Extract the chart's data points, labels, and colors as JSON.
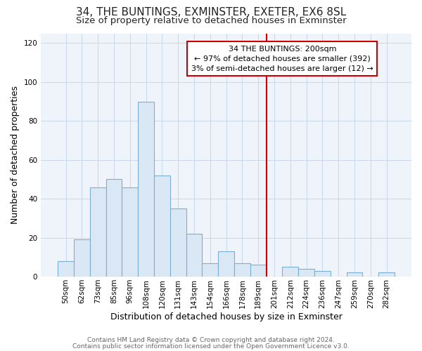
{
  "title": "34, THE BUNTINGS, EXMINSTER, EXETER, EX6 8SL",
  "subtitle": "Size of property relative to detached houses in Exminster",
  "xlabel": "Distribution of detached houses by size in Exminster",
  "ylabel": "Number of detached properties",
  "bar_labels": [
    "50sqm",
    "62sqm",
    "73sqm",
    "85sqm",
    "96sqm",
    "108sqm",
    "120sqm",
    "131sqm",
    "143sqm",
    "154sqm",
    "166sqm",
    "178sqm",
    "189sqm",
    "201sqm",
    "212sqm",
    "224sqm",
    "236sqm",
    "247sqm",
    "259sqm",
    "270sqm",
    "282sqm"
  ],
  "bar_heights": [
    8,
    19,
    46,
    50,
    46,
    90,
    52,
    35,
    22,
    7,
    13,
    7,
    6,
    0,
    5,
    4,
    3,
    0,
    2,
    0,
    2
  ],
  "bar_color": "#dae8f5",
  "bar_edge_color": "#7ab0d4",
  "vline_color": "#cc0000",
  "annotation_title": "34 THE BUNTINGS: 200sqm",
  "annotation_line1": "← 97% of detached houses are smaller (392)",
  "annotation_line2": "3% of semi-detached houses are larger (12) →",
  "annotation_box_color": "#ffffff",
  "annotation_box_edge_color": "#cc0000",
  "ylim": [
    0,
    125
  ],
  "yticks": [
    0,
    20,
    40,
    60,
    80,
    100,
    120
  ],
  "footer1": "Contains HM Land Registry data © Crown copyright and database right 2024.",
  "footer2": "Contains public sector information licensed under the Open Government Licence v3.0.",
  "background_color": "#ffffff",
  "plot_bg_color": "#eef4fa",
  "grid_color": "#c8d8e8",
  "title_fontsize": 11,
  "subtitle_fontsize": 9.5,
  "axis_label_fontsize": 9,
  "tick_fontsize": 7.5,
  "footer_fontsize": 6.5,
  "annotation_fontsize": 8.0
}
